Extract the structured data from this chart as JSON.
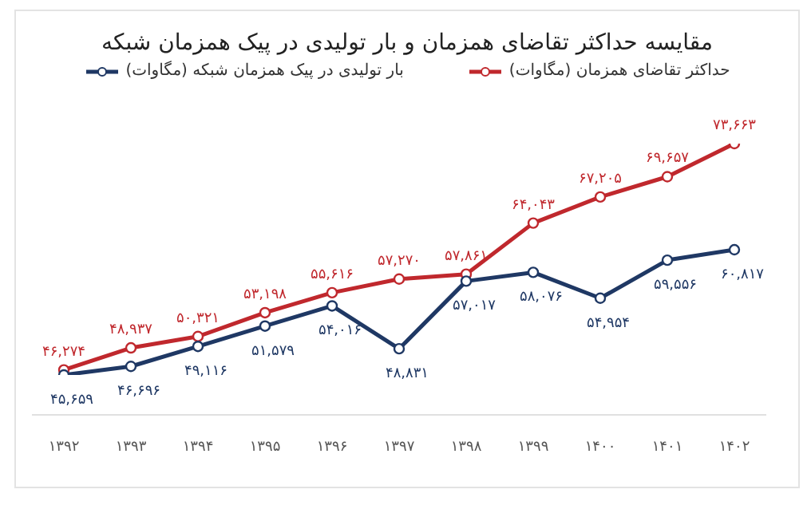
{
  "chart_data": {
    "type": "line",
    "title": "مقایسه حداکثر تقاضای همزمان و بار تولیدی در پیک همزمان شبکه",
    "categories": [
      "۱۳۹۲",
      "۱۳۹۳",
      "۱۳۹۴",
      "۱۳۹۵",
      "۱۳۹۶",
      "۱۳۹۷",
      "۱۳۹۸",
      "۱۳۹۹",
      "۱۴۰۰",
      "۱۴۰۱",
      "۱۴۰۲"
    ],
    "series": [
      {
        "name": "حداکثر تقاضای همزمان (مگاوات)",
        "color": "#c0282d",
        "values": [
          46274,
          48937,
          50321,
          53198,
          55616,
          57270,
          57861,
          64043,
          67205,
          69657,
          73663
        ],
        "value_labels": [
          "۴۶,۲۷۴",
          "۴۸,۹۳۷",
          "۵۰,۳۲۱",
          "۵۳,۱۹۸",
          "۵۵,۶۱۶",
          "۵۷,۲۷۰",
          "۵۷,۸۶۱",
          "۶۴,۰۴۳",
          "۶۷,۲۰۵",
          "۶۹,۶۵۷",
          "۷۳,۶۶۳"
        ]
      },
      {
        "name": "بار تولیدی در پیک همزمان شبکه (مگاوات)",
        "color": "#1f3864",
        "values": [
          45659,
          46696,
          49116,
          51579,
          54016,
          48831,
          57017,
          58076,
          54954,
          59556,
          60817
        ],
        "value_labels": [
          "۴۵,۶۵۹",
          "۴۶,۶۹۶",
          "۴۹,۱۱۶",
          "۵۱,۵۷۹",
          "۵۴,۰۱۶",
          "۴۸,۸۳۱",
          "۵۷,۰۱۷",
          "۵۸,۰۷۶",
          "۵۴,۹۵۴",
          "۵۹,۵۵۶",
          "۶۰,۸۱۷"
        ]
      }
    ],
    "legend": "top",
    "grid": false,
    "marker": "circle",
    "line_style": "solid"
  }
}
